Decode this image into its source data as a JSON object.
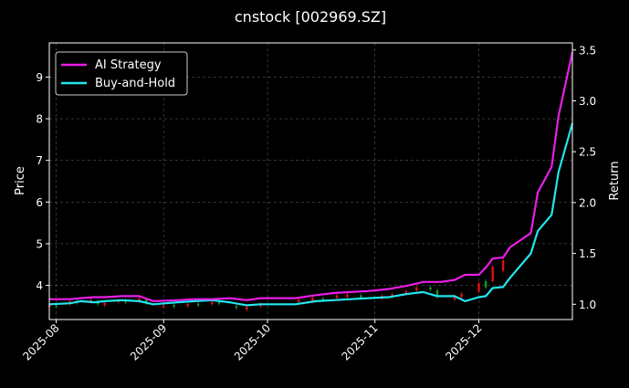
{
  "chart_data": {
    "type": "line",
    "title": "cnstock [002969.SZ]",
    "xlabel": "",
    "ylabel": "Price",
    "y2label": "Return",
    "x_ticks": [
      "2025-08",
      "2025-09",
      "2025-10",
      "2025-11",
      "2025-12"
    ],
    "x_range": [
      "2025-07-30",
      "2025-12-28"
    ],
    "y_ticks": [
      4,
      5,
      6,
      7,
      8,
      9
    ],
    "ylim": [
      3.18,
      9.82
    ],
    "y2_ticks": [
      "1.0",
      "1.5",
      "2.0",
      "2.5",
      "3.0",
      "3.5"
    ],
    "y2lim": [
      0.85,
      3.57
    ],
    "grid": true,
    "legend_position": "upper-left",
    "colors": {
      "ai": "#e91ee6",
      "bh": "#22e6ee",
      "up": "#e01010",
      "down": "#0e9a2c",
      "grid": "#555555"
    },
    "series": [
      {
        "name": "AI Strategy",
        "axis": "right",
        "x": [
          "2025-07-30",
          "2025-08-05",
          "2025-08-08",
          "2025-08-12",
          "2025-08-15",
          "2025-08-20",
          "2025-08-25",
          "2025-08-29",
          "2025-09-05",
          "2025-09-10",
          "2025-09-15",
          "2025-09-20",
          "2025-09-25",
          "2025-09-29",
          "2025-10-09",
          "2025-10-15",
          "2025-10-20",
          "2025-10-25",
          "2025-10-30",
          "2025-11-05",
          "2025-11-10",
          "2025-11-15",
          "2025-11-20",
          "2025-11-24",
          "2025-11-27",
          "2025-12-01",
          "2025-12-03",
          "2025-12-05",
          "2025-12-08",
          "2025-12-10",
          "2025-12-16",
          "2025-12-18",
          "2025-12-22",
          "2025-12-24",
          "2025-12-28"
        ],
        "values": [
          1.05,
          1.05,
          1.06,
          1.07,
          1.07,
          1.08,
          1.08,
          1.03,
          1.04,
          1.05,
          1.05,
          1.06,
          1.04,
          1.06,
          1.06,
          1.09,
          1.11,
          1.12,
          1.13,
          1.15,
          1.18,
          1.22,
          1.22,
          1.24,
          1.29,
          1.29,
          1.36,
          1.45,
          1.46,
          1.56,
          1.7,
          2.1,
          2.35,
          2.85,
          3.48
        ]
      },
      {
        "name": "Buy-and-Hold",
        "axis": "right",
        "x": [
          "2025-07-30",
          "2025-08-05",
          "2025-08-08",
          "2025-08-12",
          "2025-08-15",
          "2025-08-20",
          "2025-08-25",
          "2025-08-29",
          "2025-09-05",
          "2025-09-10",
          "2025-09-15",
          "2025-09-20",
          "2025-09-25",
          "2025-09-29",
          "2025-10-09",
          "2025-10-15",
          "2025-10-20",
          "2025-10-25",
          "2025-10-30",
          "2025-11-05",
          "2025-11-10",
          "2025-11-15",
          "2025-11-19",
          "2025-11-24",
          "2025-11-27",
          "2025-12-01",
          "2025-12-03",
          "2025-12-05",
          "2025-12-08",
          "2025-12-10",
          "2025-12-16",
          "2025-12-18",
          "2025-12-22",
          "2025-12-24",
          "2025-12-28"
        ],
        "values": [
          1.0,
          1.01,
          1.03,
          1.02,
          1.03,
          1.04,
          1.03,
          1.0,
          1.02,
          1.03,
          1.04,
          1.02,
          0.99,
          1.0,
          1.0,
          1.03,
          1.04,
          1.05,
          1.06,
          1.07,
          1.1,
          1.12,
          1.08,
          1.08,
          1.03,
          1.07,
          1.08,
          1.16,
          1.17,
          1.26,
          1.5,
          1.72,
          1.88,
          2.3,
          2.78
        ]
      }
    ],
    "candles": [
      {
        "x": "2025-07-30",
        "o": 3.48,
        "c": 3.53
      },
      {
        "x": "2025-08-01",
        "o": 3.52,
        "c": 3.49
      },
      {
        "x": "2025-08-05",
        "o": 3.55,
        "c": 3.62
      },
      {
        "x": "2025-08-07",
        "o": 3.62,
        "c": 3.58
      },
      {
        "x": "2025-08-11",
        "o": 3.6,
        "c": 3.65
      },
      {
        "x": "2025-08-13",
        "o": 3.6,
        "c": 3.55
      },
      {
        "x": "2025-08-15",
        "o": 3.52,
        "c": 3.58
      },
      {
        "x": "2025-08-19",
        "o": 3.6,
        "c": 3.63
      },
      {
        "x": "2025-08-21",
        "o": 3.64,
        "c": 3.59
      },
      {
        "x": "2025-08-25",
        "o": 3.62,
        "c": 3.68
      },
      {
        "x": "2025-08-27",
        "o": 3.66,
        "c": 3.58
      },
      {
        "x": "2025-09-01",
        "o": 3.48,
        "c": 3.52
      },
      {
        "x": "2025-09-04",
        "o": 3.53,
        "c": 3.49
      },
      {
        "x": "2025-09-08",
        "o": 3.5,
        "c": 3.55
      },
      {
        "x": "2025-09-11",
        "o": 3.56,
        "c": 3.52
      },
      {
        "x": "2025-09-15",
        "o": 3.55,
        "c": 3.6
      },
      {
        "x": "2025-09-17",
        "o": 3.6,
        "c": 3.56
      },
      {
        "x": "2025-09-22",
        "o": 3.5,
        "c": 3.46
      },
      {
        "x": "2025-09-25",
        "o": 3.42,
        "c": 3.48
      },
      {
        "x": "2025-09-29",
        "o": 3.5,
        "c": 3.55
      },
      {
        "x": "2025-10-10",
        "o": 3.6,
        "c": 3.66
      },
      {
        "x": "2025-10-14",
        "o": 3.62,
        "c": 3.7
      },
      {
        "x": "2025-10-17",
        "o": 3.68,
        "c": 3.64
      },
      {
        "x": "2025-10-21",
        "o": 3.7,
        "c": 3.76
      },
      {
        "x": "2025-10-24",
        "o": 3.72,
        "c": 3.78
      },
      {
        "x": "2025-10-28",
        "o": 3.76,
        "c": 3.7
      },
      {
        "x": "2025-11-03",
        "o": 3.7,
        "c": 3.75
      },
      {
        "x": "2025-11-06",
        "o": 3.74,
        "c": 3.79
      },
      {
        "x": "2025-11-10",
        "o": 3.8,
        "c": 3.86
      },
      {
        "x": "2025-11-13",
        "o": 3.88,
        "c": 3.95
      },
      {
        "x": "2025-11-17",
        "o": 3.95,
        "c": 3.9
      },
      {
        "x": "2025-11-19",
        "o": 3.88,
        "c": 3.72
      },
      {
        "x": "2025-11-24",
        "o": 3.66,
        "c": 3.74
      },
      {
        "x": "2025-11-26",
        "o": 3.72,
        "c": 3.8
      },
      {
        "x": "2025-12-01",
        "o": 3.85,
        "c": 4.05
      },
      {
        "x": "2025-12-03",
        "o": 4.1,
        "c": 3.95
      },
      {
        "x": "2025-12-05",
        "o": 4.1,
        "c": 4.45
      },
      {
        "x": "2025-12-08",
        "o": 4.35,
        "c": 4.6
      }
    ]
  }
}
